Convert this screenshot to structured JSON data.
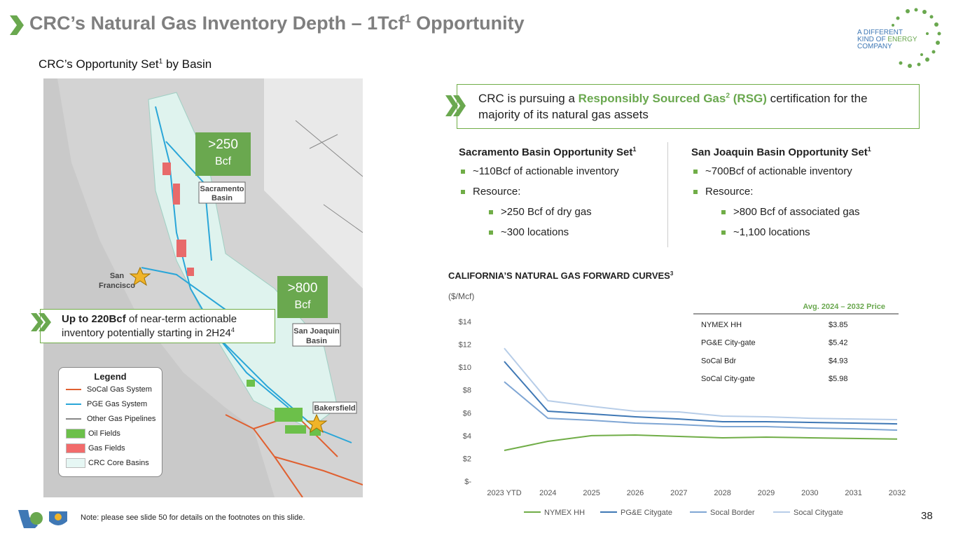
{
  "header": {
    "title": "CRC’s Natural Gas Inventory Depth – 1Tcf",
    "title_sup": "1",
    "title_rest": " Opportunity"
  },
  "logo": {
    "line1": "A DIFFERENT",
    "line2": "KIND OF ",
    "line2b": "ENERGY",
    "line3": "COMPANY"
  },
  "subtitle": {
    "text": "CRC’s Opportunity Set",
    "sup": "1",
    "rest": " by Basin"
  },
  "callout": {
    "a": "CRC is pursuing a ",
    "b": "Responsibly Sourced Gas",
    "sup": "2",
    "c": " (RSG)",
    "d": " certification for the majority of its natural gas assets"
  },
  "basins": [
    {
      "title": "Sacramento Basin Opportunity Set",
      "sup": "1",
      "bullets": [
        "~110Bcf of actionable inventory",
        "Resource:"
      ],
      "sub_bullets": [
        ">250 Bcf of dry gas",
        "~300 locations"
      ]
    },
    {
      "title": "San Joaquin Basin Opportunity Set",
      "sup": "1",
      "bullets": [
        "~700Bcf of actionable inventory",
        "Resource:"
      ],
      "sub_bullets": [
        ">800 Bcf of associated gas",
        "~1,100 locations"
      ]
    }
  ],
  "map": {
    "sac_box": [
      ">250",
      "Bcf"
    ],
    "sj_box": [
      ">800",
      "Bcf"
    ],
    "sac_label": [
      "Sacramento",
      "Basin"
    ],
    "sj_label": [
      "San Joaquin",
      "Basin"
    ],
    "sf_label": [
      "San",
      "Francisco"
    ],
    "bakersfield": "Bakersfield",
    "callout": {
      "bold": "Up to 220Bcf",
      "text": " of near-term actionable inventory potentially starting in 2H24",
      "sup": "4"
    },
    "legend": {
      "title": "Legend",
      "items": [
        "SoCal Gas System",
        "PGE Gas System",
        "Other Gas Pipelines",
        "Oil Fields",
        "Gas Fields",
        "CRC Core Basins"
      ]
    }
  },
  "price_table": {
    "header": "Avg. 2024 – 2032 Price",
    "rows": [
      [
        "NYMEX HH",
        "$3.85"
      ],
      [
        "PG&E City-gate",
        "$5.42"
      ],
      [
        "SoCal Bdr",
        "$4.93"
      ],
      [
        "SoCal City-gate",
        "$5.98"
      ]
    ]
  },
  "chart_data": {
    "type": "line",
    "title": "CALIFORNIA’S NATURAL GAS FORWARD CURVES",
    "title_sup": "3",
    "y_label": "($/Mcf)",
    "categories": [
      "2023 YTD",
      "2024",
      "2025",
      "2026",
      "2027",
      "2028",
      "2029",
      "2030",
      "2031",
      "2032"
    ],
    "series": [
      {
        "name": "NYMEX HH",
        "color": "#70ad47",
        "values": [
          2.7,
          3.5,
          4.0,
          4.05,
          3.93,
          3.81,
          3.87,
          3.81,
          3.75,
          3.7
        ]
      },
      {
        "name": "PG&E Citygate",
        "color": "#3f78b5",
        "values": [
          10.5,
          6.14,
          5.9,
          5.65,
          5.46,
          5.22,
          5.22,
          5.16,
          5.1,
          5.03
        ]
      },
      {
        "name": "Socal Border",
        "color": "#7fa6d4",
        "values": [
          8.72,
          5.52,
          5.34,
          5.1,
          4.97,
          4.79,
          4.79,
          4.67,
          4.6,
          4.48
        ]
      },
      {
        "name": "Socal Citygate",
        "color": "#b7cde8",
        "values": [
          11.66,
          7.06,
          6.57,
          6.14,
          6.08,
          5.71,
          5.65,
          5.52,
          5.46,
          5.4
        ]
      }
    ],
    "ylim": [
      0,
      14
    ],
    "yticks": [
      {
        "value": 0,
        "label": "$-"
      },
      {
        "value": 2,
        "label": "$2"
      },
      {
        "value": 4,
        "label": "$4"
      },
      {
        "value": 6,
        "label": "$6"
      },
      {
        "value": 8,
        "label": "$8"
      },
      {
        "value": 10,
        "label": "$10"
      },
      {
        "value": 12,
        "label": "$12"
      },
      {
        "value": 14,
        "label": "$14"
      }
    ],
    "grid": false,
    "legend": "bottom"
  },
  "footer": {
    "note": "Note: please see slide 50 for details on the footnotes on this slide.",
    "page": "38"
  }
}
